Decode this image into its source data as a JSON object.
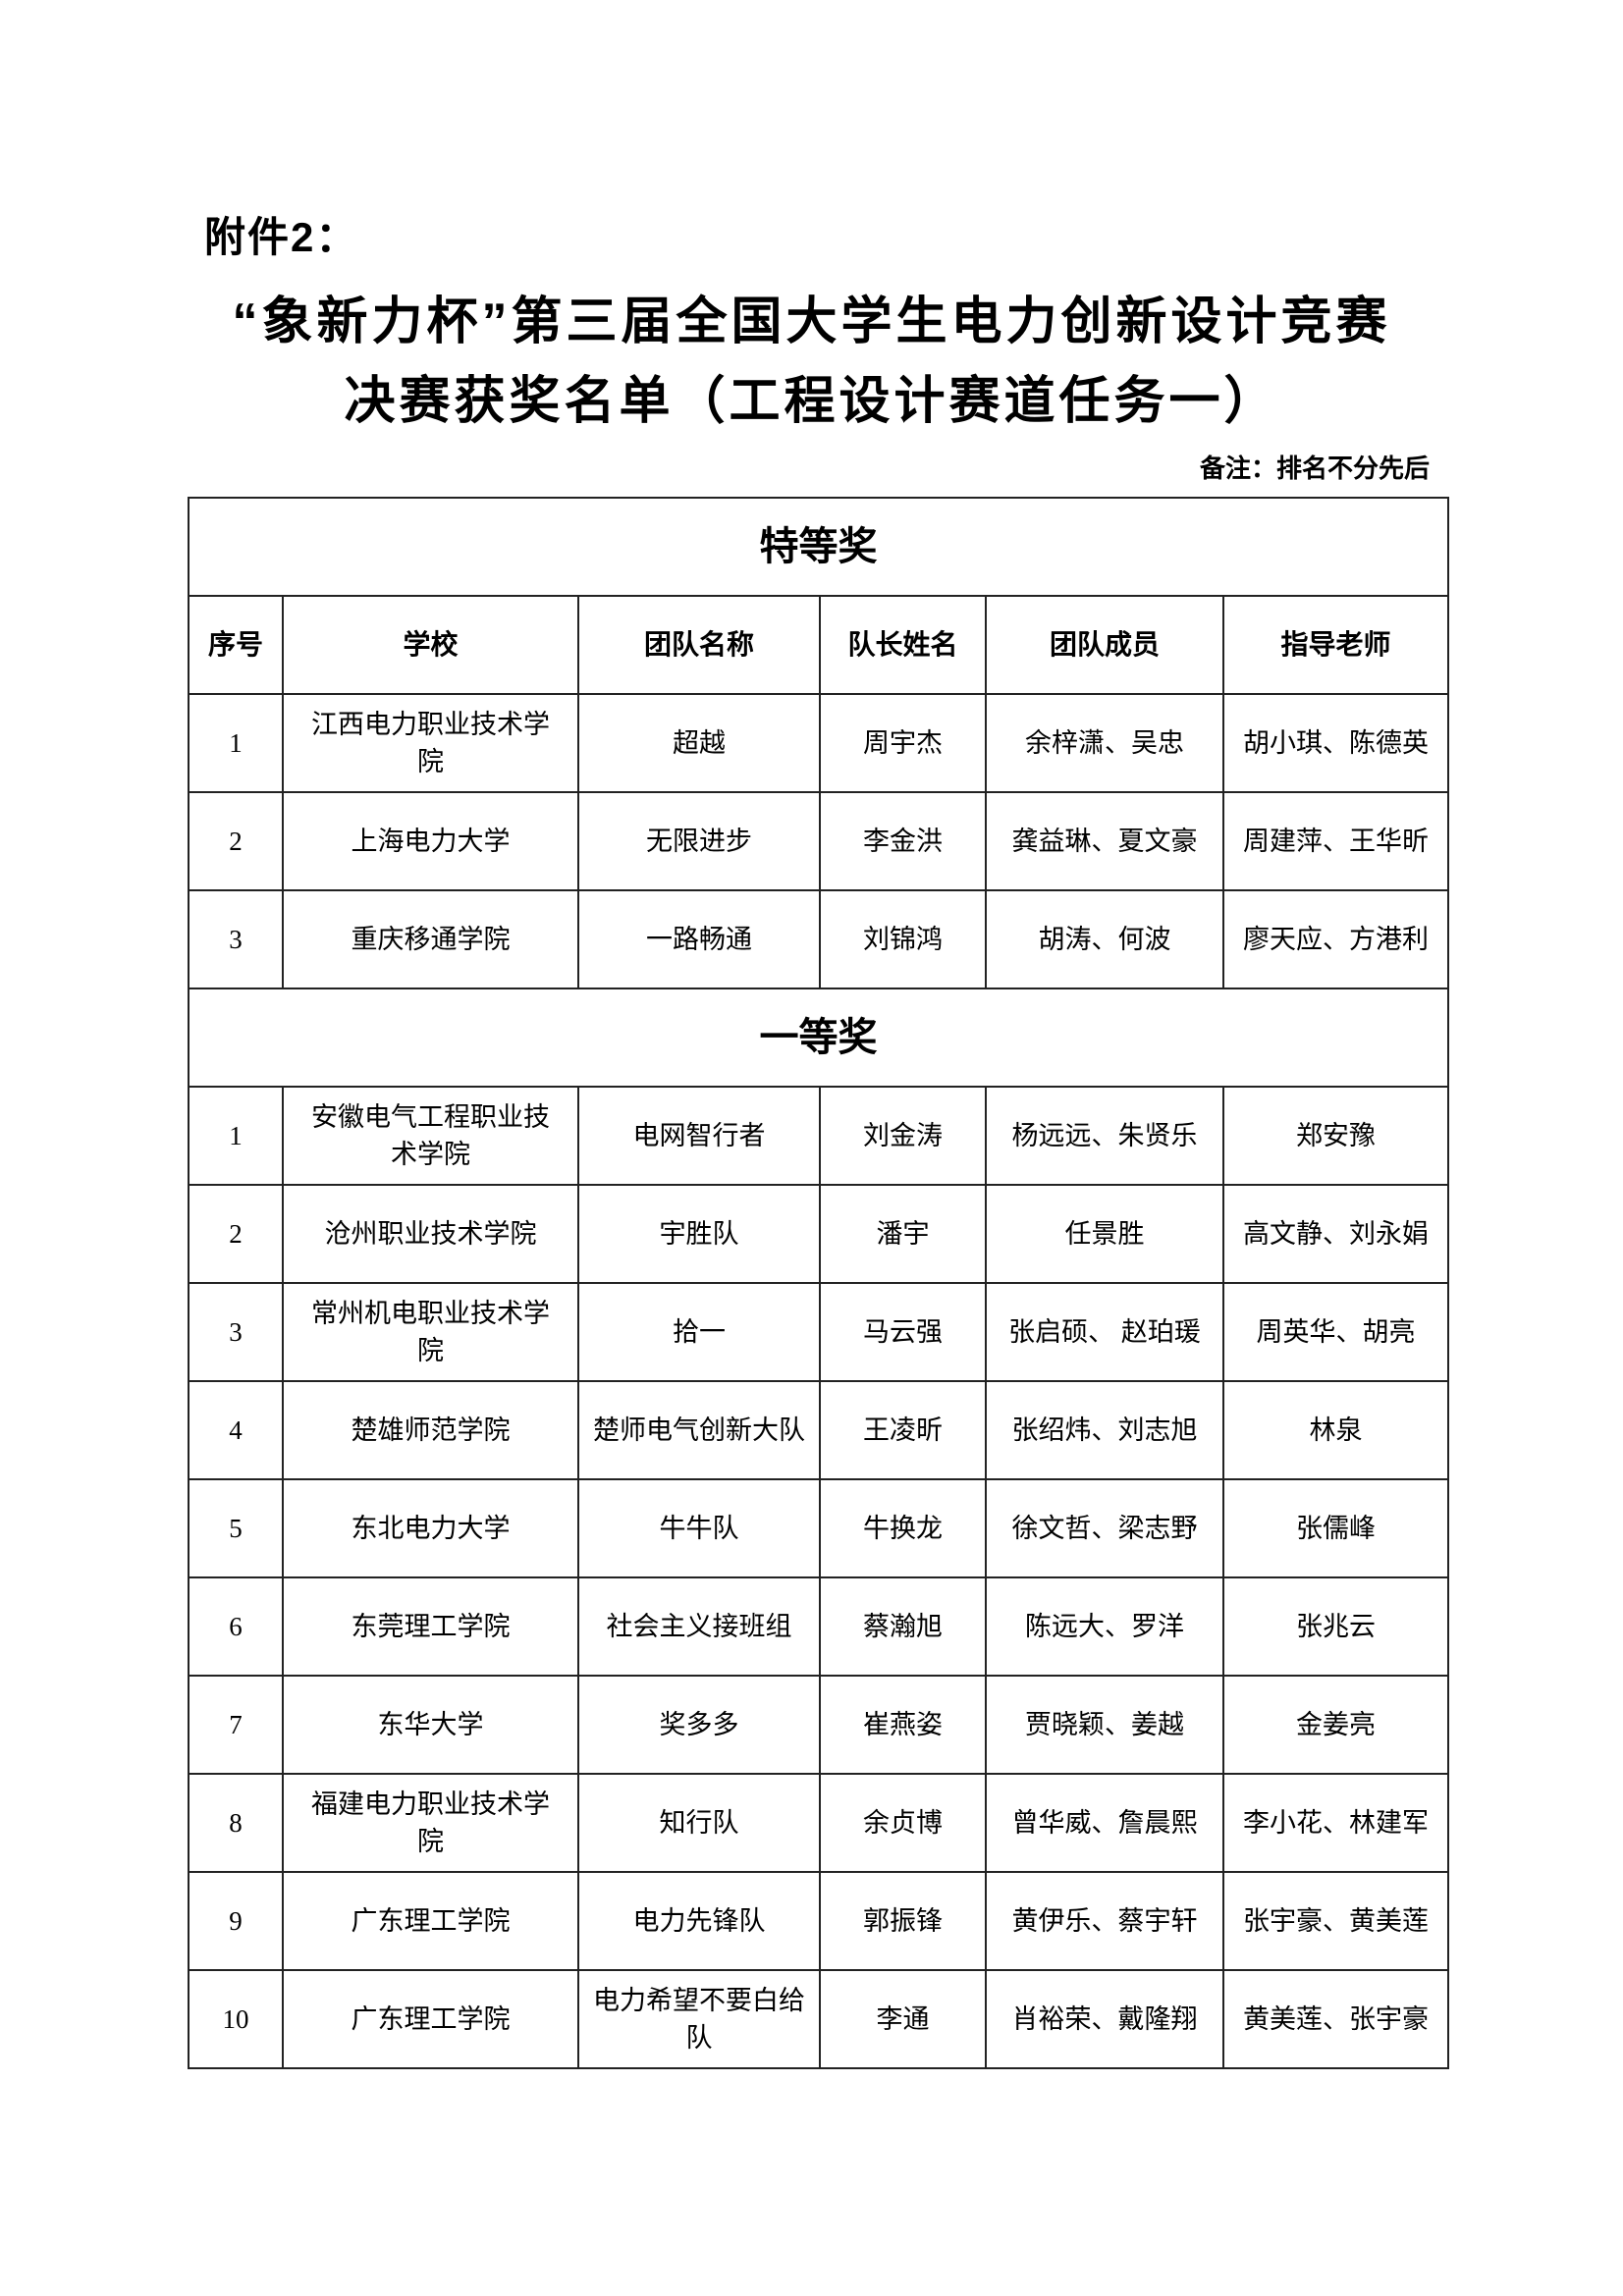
{
  "attachment": "附件2：",
  "title_line1": "“象新力杯”第三届全国大学生电力创新设计竞赛",
  "title_line2": "决赛获奖名单（工程设计赛道任务一）",
  "note": "备注：排名不分先后",
  "columns": [
    "序号",
    "学校",
    "团队名称",
    "队长姓名",
    "团队成员",
    "指导老师"
  ],
  "sections": [
    {
      "title": "特等奖",
      "rows": [
        [
          "1",
          "江西电力职业技术学院",
          "超越",
          "周宇杰",
          "余梓潇、吴忠",
          "胡小琪、陈德英"
        ],
        [
          "2",
          "上海电力大学",
          "无限进步",
          "李金洪",
          "龚益琳、夏文豪",
          "周建萍、王华昕"
        ],
        [
          "3",
          "重庆移通学院",
          "一路畅通",
          "刘锦鸿",
          "胡涛、何波",
          "廖天应、方港利"
        ]
      ]
    },
    {
      "title": "一等奖",
      "rows": [
        [
          "1",
          "安徽电气工程职业技术学院",
          "电网智行者",
          "刘金涛",
          "杨远远、朱贤乐",
          "郑安豫"
        ],
        [
          "2",
          "沧州职业技术学院",
          "宇胜队",
          "潘宇",
          "任景胜",
          "高文静、刘永娟"
        ],
        [
          "3",
          "常州机电职业技术学院",
          "拾一",
          "马云强",
          "张启硕、 赵珀瑗",
          "周英华、胡亮"
        ],
        [
          "4",
          "楚雄师范学院",
          "楚师电气创新大队",
          "王凌昕",
          "张绍炜、刘志旭",
          "林泉"
        ],
        [
          "5",
          "东北电力大学",
          "牛牛队",
          "牛换龙",
          "徐文哲、梁志野",
          "张儒峰"
        ],
        [
          "6",
          "东莞理工学院",
          "社会主义接班组",
          "蔡瀚旭",
          "陈远大、罗洋",
          "张兆云"
        ],
        [
          "7",
          "东华大学",
          "奖多多",
          "崔燕姿",
          "贾晓颖、姜越",
          "金姜亮"
        ],
        [
          "8",
          "福建电力职业技术学院",
          "知行队",
          "余贞博",
          "曾华威、詹晨熙",
          "李小花、林建军"
        ],
        [
          "9",
          "广东理工学院",
          "电力先锋队",
          "郭振锋",
          "黄伊乐、蔡宇轩",
          "张宇豪、黄美莲"
        ],
        [
          "10",
          "广东理工学院",
          "电力希望不要白给队",
          "李通",
          "肖裕荣、戴隆翔",
          "黄美莲、张宇豪"
        ]
      ]
    }
  ]
}
